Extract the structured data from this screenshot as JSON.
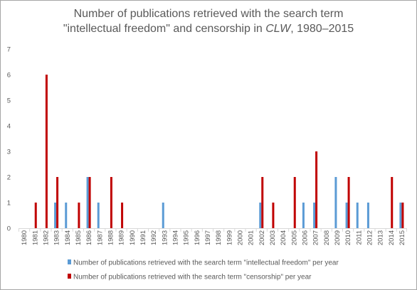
{
  "chart_data": {
    "type": "bar",
    "title_line1": "Number of publications retrieved with the search term",
    "title_line2_pre": "\"intellectual freedom\" and censorship in ",
    "title_line2_em": "CLW",
    "title_line2_post": ", 1980–2015",
    "xlabel": "",
    "ylabel": "",
    "ylim": [
      0,
      7
    ],
    "yticks": [
      0,
      1,
      2,
      3,
      4,
      5,
      6,
      7
    ],
    "grid": false,
    "legend_position": "bottom",
    "categories": [
      "1980",
      "1981",
      "1982",
      "1983",
      "1984",
      "1985",
      "1986",
      "1987",
      "1988",
      "1989",
      "1990",
      "1991",
      "1992",
      "1993",
      "1994",
      "1995",
      "1996",
      "1997",
      "1998",
      "1999",
      "2000",
      "2001",
      "2002",
      "2003",
      "2004",
      "2005",
      "2006",
      "2007",
      "2008",
      "2009",
      "2010",
      "2011",
      "2012",
      "2013",
      "2014",
      "2015"
    ],
    "series": [
      {
        "name": "Number of publications retrieved with the search term \"intellectual freedom\" per year",
        "color": "#5b9bd5",
        "values": [
          0,
          0,
          0,
          1,
          1,
          0,
          2,
          1,
          0,
          0,
          0,
          0,
          0,
          1,
          0,
          0,
          0,
          0,
          0,
          0,
          0,
          0,
          1,
          0,
          0,
          0,
          1,
          1,
          0,
          2,
          1,
          1,
          1,
          0,
          0,
          1
        ]
      },
      {
        "name": "Number of publications retrieved with the search term \"censorship\" per year",
        "color": "#c00000",
        "values": [
          0,
          1,
          6,
          2,
          0,
          1,
          2,
          0,
          2,
          1,
          0,
          0,
          0,
          0,
          0,
          0,
          0,
          0,
          0,
          0,
          0,
          0,
          2,
          1,
          0,
          2,
          0,
          3,
          0,
          0,
          2,
          0,
          0,
          0,
          2,
          1
        ]
      }
    ]
  }
}
